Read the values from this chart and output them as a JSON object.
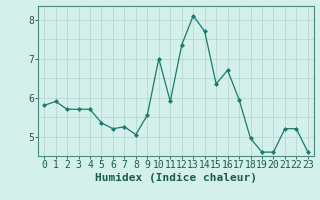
{
  "x": [
    0,
    1,
    2,
    3,
    4,
    5,
    6,
    7,
    8,
    9,
    10,
    11,
    12,
    13,
    14,
    15,
    16,
    17,
    18,
    19,
    20,
    21,
    22,
    23
  ],
  "y": [
    5.8,
    5.9,
    5.7,
    5.7,
    5.7,
    5.35,
    5.2,
    5.25,
    5.05,
    5.55,
    7.0,
    5.9,
    7.35,
    8.1,
    7.7,
    6.35,
    6.7,
    5.95,
    4.95,
    4.6,
    4.6,
    5.2,
    5.2,
    4.6
  ],
  "line_color": "#1a7a6e",
  "marker": "D",
  "marker_size": 2.0,
  "bg_color": "#d4f0eb",
  "grid_color": "#b8d8d4",
  "xlabel": "Humidex (Indice chaleur)",
  "xlabel_color": "#1a5a50",
  "tick_color": "#1a5a50",
  "spine_color": "#4a8a80",
  "ylim": [
    4.5,
    8.35
  ],
  "xlim": [
    -0.5,
    23.5
  ],
  "yticks": [
    5,
    6,
    7,
    8
  ],
  "xticks": [
    0,
    1,
    2,
    3,
    4,
    5,
    6,
    7,
    8,
    9,
    10,
    11,
    12,
    13,
    14,
    15,
    16,
    17,
    18,
    19,
    20,
    21,
    22,
    23
  ],
  "xtick_labels": [
    "0",
    "1",
    "2",
    "3",
    "4",
    "5",
    "6",
    "7",
    "8",
    "9",
    "10",
    "11",
    "12",
    "13",
    "14",
    "15",
    "16",
    "17",
    "18",
    "19",
    "20",
    "21",
    "22",
    "23"
  ],
  "font_size_xlabel": 8,
  "font_size_ticks": 7
}
